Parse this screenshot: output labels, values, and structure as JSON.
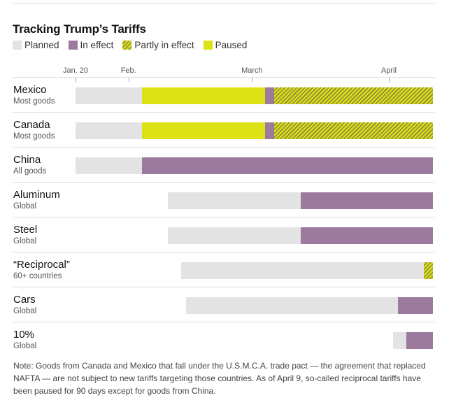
{
  "title": "Tracking Trump’s Tariffs",
  "legend": [
    {
      "key": "planned",
      "label": "Planned",
      "color": "#e3e3e3"
    },
    {
      "key": "effect",
      "label": "In effect",
      "color": "#9b7a9d"
    },
    {
      "key": "partly",
      "label": "Partly in effect",
      "color": "#d8db1c"
    },
    {
      "key": "paused",
      "label": "Paused",
      "color": "#dde216"
    }
  ],
  "note": "Note: Goods from Canada and Mexico that fall under the U.S.M.C.A. trade pact — the agreement that replaced NAFTA — are not subject to new tariffs targeting those countries. As of April 9, so-called reciprocal tariffs have been paused for 90 days except for goods from China.",
  "chart_data": {
    "type": "timeline",
    "x_axis": {
      "ticks": [
        {
          "date": "2025-01-20",
          "label": "Jan. 20"
        },
        {
          "date": "2025-02-01",
          "label": "Feb."
        },
        {
          "date": "2025-03-01",
          "label": "March"
        },
        {
          "date": "2025-04-01",
          "label": "April"
        }
      ],
      "range": [
        "2025-01-20",
        "2025-04-11"
      ]
    },
    "rows": [
      {
        "name": "Mexico",
        "sub": "Most goods",
        "segments": [
          {
            "status": "planned",
            "start": "2025-01-20",
            "end": "2025-02-04"
          },
          {
            "status": "paused",
            "start": "2025-02-04",
            "end": "2025-03-04"
          },
          {
            "status": "effect",
            "start": "2025-03-04",
            "end": "2025-03-06"
          },
          {
            "status": "partly",
            "start": "2025-03-06",
            "end": "2025-04-11"
          }
        ]
      },
      {
        "name": "Canada",
        "sub": "Most goods",
        "segments": [
          {
            "status": "planned",
            "start": "2025-01-20",
            "end": "2025-02-04"
          },
          {
            "status": "paused",
            "start": "2025-02-04",
            "end": "2025-03-04"
          },
          {
            "status": "effect",
            "start": "2025-03-04",
            "end": "2025-03-06"
          },
          {
            "status": "partly",
            "start": "2025-03-06",
            "end": "2025-04-11"
          }
        ]
      },
      {
        "name": "China",
        "sub": "All goods",
        "segments": [
          {
            "status": "planned",
            "start": "2025-01-20",
            "end": "2025-02-04"
          },
          {
            "status": "effect",
            "start": "2025-02-04",
            "end": "2025-04-11"
          }
        ]
      },
      {
        "name": "Aluminum",
        "sub": "Global",
        "segments": [
          {
            "status": "planned",
            "start": "2025-02-10",
            "end": "2025-03-12"
          },
          {
            "status": "effect",
            "start": "2025-03-12",
            "end": "2025-04-11"
          }
        ]
      },
      {
        "name": "Steel",
        "sub": "Global",
        "segments": [
          {
            "status": "planned",
            "start": "2025-02-10",
            "end": "2025-03-12"
          },
          {
            "status": "effect",
            "start": "2025-03-12",
            "end": "2025-04-11"
          }
        ]
      },
      {
        "name": "“Reciprocal”",
        "sub": "60+ countries",
        "segments": [
          {
            "status": "planned",
            "start": "2025-02-13",
            "end": "2025-04-09"
          },
          {
            "status": "partly",
            "start": "2025-04-09",
            "end": "2025-04-11"
          }
        ]
      },
      {
        "name": "Cars",
        "sub": "Global",
        "segments": [
          {
            "status": "planned",
            "start": "2025-02-14",
            "end": "2025-04-03"
          },
          {
            "status": "effect",
            "start": "2025-04-03",
            "end": "2025-04-11"
          }
        ]
      },
      {
        "name": "10%",
        "sub": "Global",
        "segments": [
          {
            "status": "planned",
            "start": "2025-04-02",
            "end": "2025-04-05"
          },
          {
            "status": "effect",
            "start": "2025-04-05",
            "end": "2025-04-11"
          }
        ]
      }
    ]
  }
}
